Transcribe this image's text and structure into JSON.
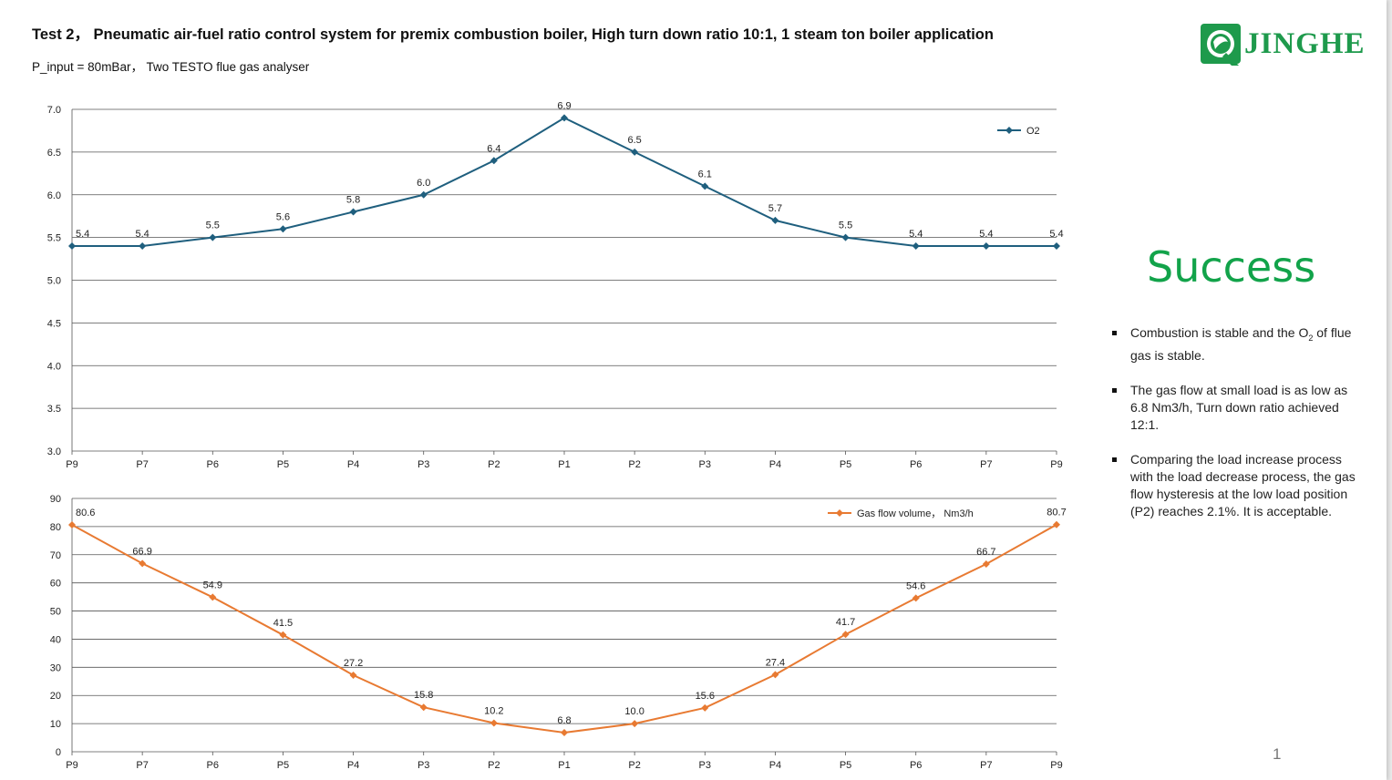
{
  "title": "Test 2， Pneumatic air-fuel ratio control system for premix combustion boiler,  High turn down ratio 10:1, 1 steam ton boiler application",
  "subtitle": "P_input = 80mBar， Two TESTO flue gas analyser",
  "logo": {
    "text": "JINGHE",
    "icon": "globe-q-logo-icon",
    "color": "#1e9a4c"
  },
  "success_text": "Success",
  "success_color": "#12a34a",
  "bullets": [
    {
      "pre": "Combustion is stable and the O",
      "sub": "2",
      "post": " of flue gas is stable."
    },
    {
      "pre": "The gas flow at small load is as low as 6.8 Nm3/h, Turn down ratio achieved 12:1.",
      "sub": "",
      "post": ""
    },
    {
      "pre": "Comparing the load increase process with the load decrease process, the gas flow hysteresis at the low load position (P2) reaches 2.1%. It is acceptable.",
      "sub": "",
      "post": ""
    }
  ],
  "page_number": "1",
  "chart_data": [
    {
      "type": "line",
      "categories": [
        "P9",
        "P7",
        "P6",
        "P5",
        "P4",
        "P3",
        "P2",
        "P1",
        "P2",
        "P3",
        "P4",
        "P5",
        "P6",
        "P7",
        "P9"
      ],
      "series": [
        {
          "name": "O2",
          "color": "#1f5f7e",
          "values": [
            5.4,
            5.4,
            5.5,
            5.6,
            5.8,
            6.0,
            6.4,
            6.9,
            6.5,
            6.1,
            5.7,
            5.5,
            5.4,
            5.4,
            5.4
          ]
        }
      ],
      "ylim": [
        3.0,
        7.0
      ],
      "yticks": [
        "3.0",
        "3.5",
        "4.0",
        "4.5",
        "5.0",
        "5.5",
        "6.0",
        "6.5",
        "7.0"
      ],
      "grid": true,
      "legend": "top-right",
      "data_labels": true
    },
    {
      "type": "line",
      "categories": [
        "P9",
        "P7",
        "P6",
        "P5",
        "P4",
        "P3",
        "P2",
        "P1",
        "P2",
        "P3",
        "P4",
        "P5",
        "P6",
        "P7",
        "P9"
      ],
      "series": [
        {
          "name": "Gas flow volume， Nm3/h",
          "color": "#e87a32",
          "values": [
            80.6,
            66.9,
            54.9,
            41.5,
            27.2,
            15.8,
            10.2,
            6.8,
            10.0,
            15.6,
            27.4,
            41.7,
            54.6,
            66.7,
            80.7
          ]
        }
      ],
      "ylim": [
        0,
        90
      ],
      "yticks": [
        "0",
        "10",
        "20",
        "30",
        "40",
        "50",
        "60",
        "70",
        "80",
        "90"
      ],
      "grid": true,
      "legend": "top-right",
      "data_labels": true
    }
  ]
}
